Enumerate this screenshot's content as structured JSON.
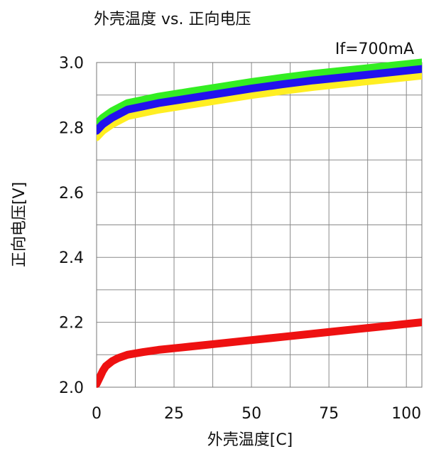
{
  "chart_data": {
    "type": "line",
    "title": "外壳温度 vs. 正向电压",
    "annotation": "If=700mA",
    "xlabel": "外壳温度[C]",
    "ylabel": "正向电压[V]",
    "xlim": [
      0,
      105
    ],
    "ylim": [
      2.0,
      3.0
    ],
    "x_ticks": [
      0,
      25,
      50,
      75,
      100
    ],
    "y_ticks": [
      2.0,
      2.2,
      2.4,
      2.6,
      2.8,
      3.0
    ],
    "x_gridlines": [
      0,
      12.5,
      25,
      37.5,
      50,
      62.5,
      75,
      87.5,
      100
    ],
    "y_gridlines": [
      2.0,
      2.1,
      2.2,
      2.3,
      2.4,
      2.5,
      2.6,
      2.7,
      2.8,
      2.9,
      3.0
    ],
    "grid": true,
    "series": [
      {
        "color": "#33ee22",
        "x": [
          0,
          2,
          5,
          10,
          15,
          20,
          30,
          40,
          50,
          60,
          70,
          80,
          90,
          100,
          105
        ],
        "y": [
          2.81,
          2.83,
          2.85,
          2.875,
          2.885,
          2.895,
          2.91,
          2.925,
          2.94,
          2.953,
          2.965,
          2.975,
          2.985,
          2.995,
          3.0
        ]
      },
      {
        "color": "#ffee22",
        "x": [
          0,
          2,
          5,
          10,
          15,
          20,
          30,
          40,
          50,
          60,
          70,
          80,
          90,
          100,
          105
        ],
        "y": [
          2.77,
          2.79,
          2.81,
          2.835,
          2.845,
          2.855,
          2.87,
          2.885,
          2.9,
          2.913,
          2.925,
          2.935,
          2.945,
          2.955,
          2.96
        ]
      },
      {
        "color": "#2211ee",
        "x": [
          0,
          2,
          5,
          10,
          15,
          20,
          30,
          40,
          50,
          60,
          70,
          80,
          90,
          100,
          105
        ],
        "y": [
          2.79,
          2.81,
          2.83,
          2.855,
          2.865,
          2.875,
          2.89,
          2.905,
          2.92,
          2.933,
          2.945,
          2.955,
          2.965,
          2.975,
          2.98
        ]
      },
      {
        "color": "#ee1111",
        "x": [
          0,
          1,
          2,
          3,
          5,
          7,
          10,
          15,
          20,
          30,
          40,
          50,
          60,
          70,
          80,
          90,
          100,
          105
        ],
        "y": [
          2.01,
          2.03,
          2.05,
          2.065,
          2.08,
          2.09,
          2.1,
          2.108,
          2.115,
          2.125,
          2.135,
          2.145,
          2.155,
          2.165,
          2.175,
          2.185,
          2.195,
          2.2
        ]
      }
    ]
  }
}
